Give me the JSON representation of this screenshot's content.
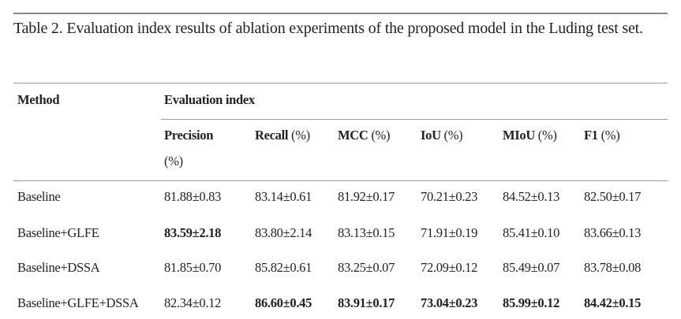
{
  "caption": "Table 2. Evaluation index results of ablation experiments of the proposed model in the Luding test set.",
  "header": {
    "method": "Method",
    "group": "Evaluation index",
    "columns": [
      {
        "name": "Precision",
        "unit": "(%)"
      },
      {
        "name": "Recall",
        "unit": "(%)"
      },
      {
        "name": "MCC",
        "unit": "(%)"
      },
      {
        "name": "IoU",
        "unit": "(%)"
      },
      {
        "name": "MIoU",
        "unit": "(%)"
      },
      {
        "name": "F1",
        "unit": "(%)"
      }
    ]
  },
  "rows": [
    {
      "method": "Baseline",
      "values": [
        "81.88±0.83",
        "83.14±0.61",
        "81.92±0.17",
        "70.21±0.23",
        "84.52±0.13",
        "82.50±0.17"
      ],
      "bold": [
        false,
        false,
        false,
        false,
        false,
        false
      ]
    },
    {
      "method": "Baseline+GLFE",
      "values": [
        "83.59±2.18",
        "83.80±2.14",
        "83.13±0.15",
        "71.91±0.19",
        "85.41±0.10",
        "83.66±0.13"
      ],
      "bold": [
        true,
        false,
        false,
        false,
        false,
        false
      ]
    },
    {
      "method": "Baseline+DSSA",
      "values": [
        "81.85±0.70",
        "85.82±0.61",
        "83.25±0.07",
        "72.09±0.12",
        "85.49±0.07",
        "83.78±0.08"
      ],
      "bold": [
        false,
        false,
        false,
        false,
        false,
        false
      ]
    },
    {
      "method": "Baseline+GLFE+DSSA",
      "values": [
        "82.34±0.12",
        "86.60±0.45",
        "83.91±0.17",
        "73.04±0.23",
        "85.99±0.12",
        "84.42±0.15"
      ],
      "bold": [
        false,
        true,
        true,
        true,
        true,
        true
      ]
    }
  ]
}
